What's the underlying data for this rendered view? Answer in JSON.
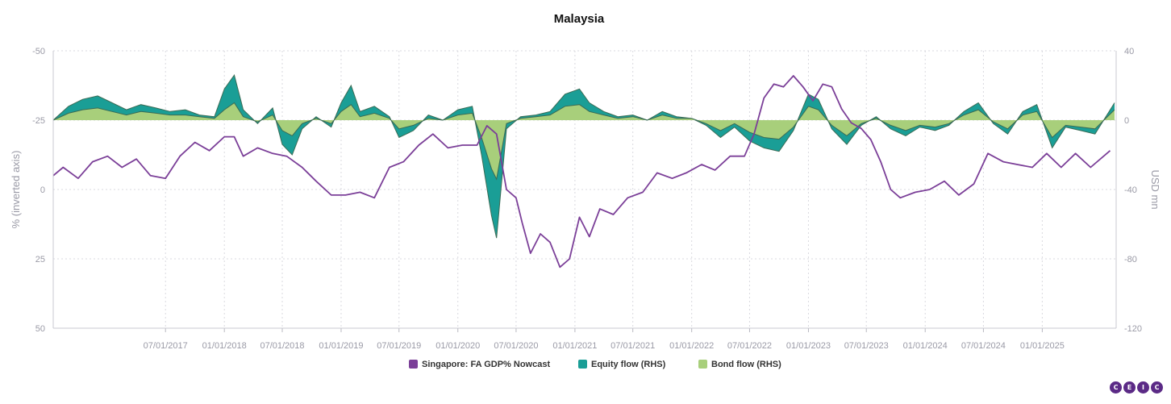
{
  "chart_data": {
    "type": "line",
    "title": "Malaysia",
    "left_axis": {
      "label": "% (inverted axis)",
      "inverted": true,
      "range": [
        -50,
        50
      ],
      "ticks": [
        -50,
        -25,
        0,
        25,
        50
      ],
      "tick_labels": [
        "-50",
        "-25",
        "0",
        "25",
        "50"
      ]
    },
    "right_axis": {
      "label": "USD mn",
      "range": [
        -120,
        40
      ],
      "ticks": [
        40,
        0,
        -40,
        -80,
        -120
      ],
      "tick_labels": [
        "40",
        "0",
        "-40",
        "-80",
        "-120"
      ]
    },
    "x_axis": {
      "range": [
        "2016-07-15",
        "2025-08-20"
      ],
      "ticks": [
        "2017-07-01",
        "2018-01-01",
        "2018-07-01",
        "2019-01-01",
        "2019-07-01",
        "2020-01-01",
        "2020-07-01",
        "2021-01-01",
        "2021-07-01",
        "2022-01-01",
        "2022-07-01",
        "2023-01-01",
        "2023-07-01",
        "2024-01-01",
        "2024-07-01",
        "2025-01-01"
      ],
      "tick_labels": [
        "07/01/2017",
        "01/01/2018",
        "07/01/2018",
        "01/01/2019",
        "07/01/2019",
        "01/01/2020",
        "07/01/2020",
        "01/01/2021",
        "07/01/2021",
        "01/01/2022",
        "07/01/2022",
        "01/01/2023",
        "07/01/2023",
        "01/01/2024",
        "07/01/2024",
        "01/01/2025"
      ]
    },
    "grid": true,
    "legend_position": "bottom-center",
    "series": [
      {
        "name": "Singapore: FA GDP% Nowcast",
        "axis": "left",
        "kind": "line",
        "color": "#7b3f98",
        "points": [
          [
            "2016-07-15",
            -5
          ],
          [
            "2016-08-15",
            -8
          ],
          [
            "2016-10-01",
            -4
          ],
          [
            "2016-11-15",
            -10
          ],
          [
            "2017-01-01",
            -12
          ],
          [
            "2017-02-15",
            -8
          ],
          [
            "2017-04-01",
            -11
          ],
          [
            "2017-05-15",
            -5
          ],
          [
            "2017-07-01",
            -4
          ],
          [
            "2017-08-15",
            -12
          ],
          [
            "2017-10-01",
            -17
          ],
          [
            "2017-11-15",
            -14
          ],
          [
            "2018-01-01",
            -19
          ],
          [
            "2018-02-01",
            -19
          ],
          [
            "2018-03-01",
            -12
          ],
          [
            "2018-04-15",
            -15
          ],
          [
            "2018-06-01",
            -13
          ],
          [
            "2018-07-15",
            -12
          ],
          [
            "2018-09-01",
            -8
          ],
          [
            "2018-10-15",
            -3
          ],
          [
            "2018-12-01",
            2
          ],
          [
            "2019-01-15",
            2
          ],
          [
            "2019-03-01",
            1
          ],
          [
            "2019-04-15",
            3
          ],
          [
            "2019-06-01",
            -8
          ],
          [
            "2019-07-15",
            -10
          ],
          [
            "2019-09-01",
            -16
          ],
          [
            "2019-10-15",
            -20
          ],
          [
            "2019-12-01",
            -15
          ],
          [
            "2020-01-15",
            -16
          ],
          [
            "2020-03-01",
            -16
          ],
          [
            "2020-04-01",
            -23
          ],
          [
            "2020-05-01",
            -20
          ],
          [
            "2020-06-01",
            0
          ],
          [
            "2020-07-01",
            3
          ],
          [
            "2020-07-20",
            12
          ],
          [
            "2020-08-15",
            23
          ],
          [
            "2020-09-15",
            16
          ],
          [
            "2020-10-15",
            19
          ],
          [
            "2020-11-15",
            28
          ],
          [
            "2020-12-15",
            25
          ],
          [
            "2021-01-15",
            10
          ],
          [
            "2021-02-15",
            17
          ],
          [
            "2021-03-20",
            7
          ],
          [
            "2021-05-01",
            9
          ],
          [
            "2021-06-15",
            3
          ],
          [
            "2021-08-01",
            1
          ],
          [
            "2021-09-15",
            -6
          ],
          [
            "2021-11-01",
            -4
          ],
          [
            "2021-12-15",
            -6
          ],
          [
            "2022-02-01",
            -9
          ],
          [
            "2022-03-15",
            -7
          ],
          [
            "2022-05-01",
            -12
          ],
          [
            "2022-06-15",
            -12
          ],
          [
            "2022-07-15",
            -20
          ],
          [
            "2022-08-15",
            -33
          ],
          [
            "2022-09-15",
            -38
          ],
          [
            "2022-10-15",
            -37
          ],
          [
            "2022-11-15",
            -41
          ],
          [
            "2022-12-15",
            -37
          ],
          [
            "2023-01-15",
            -32
          ],
          [
            "2023-02-15",
            -38
          ],
          [
            "2023-03-15",
            -37
          ],
          [
            "2023-04-15",
            -29
          ],
          [
            "2023-05-15",
            -24
          ],
          [
            "2023-06-15",
            -22
          ],
          [
            "2023-07-15",
            -18
          ],
          [
            "2023-08-15",
            -10
          ],
          [
            "2023-09-15",
            0
          ],
          [
            "2023-10-15",
            3
          ],
          [
            "2023-12-01",
            1
          ],
          [
            "2024-01-15",
            0
          ],
          [
            "2024-03-01",
            -3
          ],
          [
            "2024-04-15",
            2
          ],
          [
            "2024-06-01",
            -2
          ],
          [
            "2024-07-15",
            -13
          ],
          [
            "2024-09-01",
            -10
          ],
          [
            "2024-10-15",
            -9
          ],
          [
            "2024-12-01",
            -8
          ],
          [
            "2025-01-15",
            -13
          ],
          [
            "2025-03-01",
            -8
          ],
          [
            "2025-04-15",
            -13
          ],
          [
            "2025-06-01",
            -8
          ],
          [
            "2025-08-01",
            -14
          ]
        ]
      },
      {
        "name": "Equity flow (RHS)",
        "axis": "right",
        "kind": "area",
        "color": "#1a9e96",
        "points": [
          [
            "2016-07-15",
            0
          ],
          [
            "2016-09-01",
            8
          ],
          [
            "2016-10-15",
            12
          ],
          [
            "2016-12-01",
            14
          ],
          [
            "2017-01-15",
            10
          ],
          [
            "2017-03-01",
            6
          ],
          [
            "2017-04-15",
            9
          ],
          [
            "2017-06-01",
            7
          ],
          [
            "2017-07-15",
            5
          ],
          [
            "2017-09-01",
            6
          ],
          [
            "2017-10-15",
            3
          ],
          [
            "2017-12-01",
            2
          ],
          [
            "2018-01-01",
            18
          ],
          [
            "2018-02-01",
            26
          ],
          [
            "2018-03-01",
            6
          ],
          [
            "2018-04-15",
            -2
          ],
          [
            "2018-06-01",
            7
          ],
          [
            "2018-07-01",
            -14
          ],
          [
            "2018-08-01",
            -20
          ],
          [
            "2018-09-01",
            -5
          ],
          [
            "2018-10-15",
            2
          ],
          [
            "2018-12-01",
            -4
          ],
          [
            "2019-01-01",
            10
          ],
          [
            "2019-02-01",
            20
          ],
          [
            "2019-03-01",
            5
          ],
          [
            "2019-04-15",
            8
          ],
          [
            "2019-06-01",
            2
          ],
          [
            "2019-07-01",
            -10
          ],
          [
            "2019-08-15",
            -6
          ],
          [
            "2019-10-01",
            3
          ],
          [
            "2019-11-15",
            0
          ],
          [
            "2020-01-01",
            6
          ],
          [
            "2020-02-15",
            8
          ],
          [
            "2020-03-15",
            -20
          ],
          [
            "2020-04-15",
            -55
          ],
          [
            "2020-05-01",
            -68
          ],
          [
            "2020-06-01",
            -5
          ],
          [
            "2020-07-15",
            2
          ],
          [
            "2020-09-01",
            3
          ],
          [
            "2020-10-15",
            5
          ],
          [
            "2020-12-01",
            15
          ],
          [
            "2021-01-15",
            18
          ],
          [
            "2021-02-15",
            10
          ],
          [
            "2021-04-01",
            5
          ],
          [
            "2021-05-15",
            2
          ],
          [
            "2021-07-01",
            3
          ],
          [
            "2021-08-15",
            0
          ],
          [
            "2021-10-01",
            5
          ],
          [
            "2021-11-15",
            2
          ],
          [
            "2022-01-01",
            1
          ],
          [
            "2022-02-15",
            -3
          ],
          [
            "2022-04-01",
            -10
          ],
          [
            "2022-05-15",
            -4
          ],
          [
            "2022-07-01",
            -12
          ],
          [
            "2022-08-15",
            -16
          ],
          [
            "2022-10-01",
            -18
          ],
          [
            "2022-11-15",
            -6
          ],
          [
            "2023-01-01",
            15
          ],
          [
            "2023-02-01",
            12
          ],
          [
            "2023-03-15",
            -5
          ],
          [
            "2023-05-01",
            -14
          ],
          [
            "2023-06-15",
            -3
          ],
          [
            "2023-08-01",
            2
          ],
          [
            "2023-09-15",
            -5
          ],
          [
            "2023-11-01",
            -9
          ],
          [
            "2023-12-15",
            -4
          ],
          [
            "2024-02-01",
            -6
          ],
          [
            "2024-03-15",
            -3
          ],
          [
            "2024-05-01",
            5
          ],
          [
            "2024-06-15",
            10
          ],
          [
            "2024-08-01",
            -2
          ],
          [
            "2024-09-15",
            -8
          ],
          [
            "2024-11-01",
            5
          ],
          [
            "2024-12-15",
            9
          ],
          [
            "2025-02-01",
            -16
          ],
          [
            "2025-03-15",
            -4
          ],
          [
            "2025-05-01",
            -6
          ],
          [
            "2025-06-15",
            -8
          ],
          [
            "2025-08-15",
            10
          ]
        ]
      },
      {
        "name": "Bond flow (RHS)",
        "axis": "right",
        "kind": "area",
        "color": "#a8cf7b",
        "points": [
          [
            "2016-07-15",
            0
          ],
          [
            "2016-09-01",
            4
          ],
          [
            "2016-10-15",
            6
          ],
          [
            "2016-12-01",
            7
          ],
          [
            "2017-01-15",
            5
          ],
          [
            "2017-03-01",
            3
          ],
          [
            "2017-04-15",
            5
          ],
          [
            "2017-06-01",
            4
          ],
          [
            "2017-07-15",
            3
          ],
          [
            "2017-09-01",
            3
          ],
          [
            "2017-10-15",
            2
          ],
          [
            "2017-12-01",
            1
          ],
          [
            "2018-01-01",
            6
          ],
          [
            "2018-02-01",
            10
          ],
          [
            "2018-03-01",
            2
          ],
          [
            "2018-04-15",
            -1
          ],
          [
            "2018-06-01",
            3
          ],
          [
            "2018-07-01",
            -6
          ],
          [
            "2018-08-01",
            -9
          ],
          [
            "2018-09-01",
            -2
          ],
          [
            "2018-10-15",
            1
          ],
          [
            "2018-12-01",
            -2
          ],
          [
            "2019-01-01",
            5
          ],
          [
            "2019-02-01",
            9
          ],
          [
            "2019-03-01",
            2
          ],
          [
            "2019-04-15",
            4
          ],
          [
            "2019-06-01",
            1
          ],
          [
            "2019-07-01",
            -5
          ],
          [
            "2019-08-15",
            -3
          ],
          [
            "2019-10-01",
            1
          ],
          [
            "2019-11-15",
            0
          ],
          [
            "2020-01-01",
            3
          ],
          [
            "2020-02-15",
            4
          ],
          [
            "2020-03-15",
            -10
          ],
          [
            "2020-04-15",
            -28
          ],
          [
            "2020-05-01",
            -34
          ],
          [
            "2020-06-01",
            -2
          ],
          [
            "2020-07-15",
            1
          ],
          [
            "2020-09-01",
            2
          ],
          [
            "2020-10-15",
            3
          ],
          [
            "2020-12-01",
            8
          ],
          [
            "2021-01-15",
            9
          ],
          [
            "2021-02-15",
            5
          ],
          [
            "2021-04-01",
            3
          ],
          [
            "2021-05-15",
            1
          ],
          [
            "2021-07-01",
            2
          ],
          [
            "2021-08-15",
            0
          ],
          [
            "2021-10-01",
            3
          ],
          [
            "2021-11-15",
            1
          ],
          [
            "2022-01-01",
            1
          ],
          [
            "2022-02-15",
            -2
          ],
          [
            "2022-04-01",
            -6
          ],
          [
            "2022-05-15",
            -2
          ],
          [
            "2022-07-01",
            -7
          ],
          [
            "2022-08-15",
            -10
          ],
          [
            "2022-10-01",
            -11
          ],
          [
            "2022-11-15",
            -4
          ],
          [
            "2023-01-01",
            8
          ],
          [
            "2023-02-01",
            6
          ],
          [
            "2023-03-15",
            -3
          ],
          [
            "2023-05-01",
            -9
          ],
          [
            "2023-06-15",
            -2
          ],
          [
            "2023-08-01",
            1
          ],
          [
            "2023-09-15",
            -3
          ],
          [
            "2023-11-01",
            -6
          ],
          [
            "2023-12-15",
            -3
          ],
          [
            "2024-02-01",
            -4
          ],
          [
            "2024-03-15",
            -2
          ],
          [
            "2024-05-01",
            3
          ],
          [
            "2024-06-15",
            6
          ],
          [
            "2024-08-01",
            -1
          ],
          [
            "2024-09-15",
            -5
          ],
          [
            "2024-11-01",
            3
          ],
          [
            "2024-12-15",
            5
          ],
          [
            "2025-02-01",
            -10
          ],
          [
            "2025-03-15",
            -3
          ],
          [
            "2025-05-01",
            -4
          ],
          [
            "2025-06-15",
            -5
          ],
          [
            "2025-08-15",
            6
          ]
        ]
      }
    ],
    "watermark": "CEIC"
  }
}
